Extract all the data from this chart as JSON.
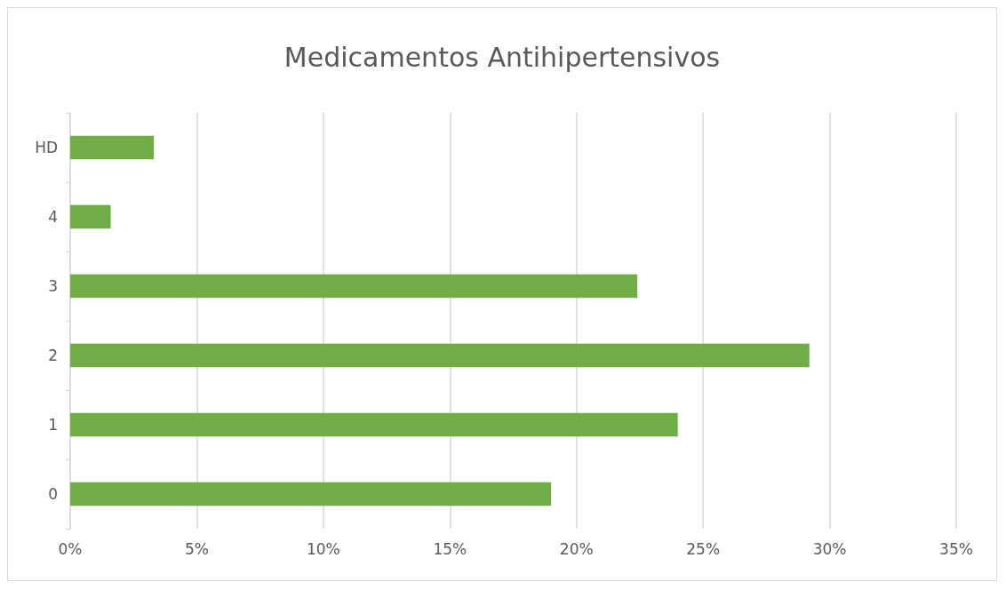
{
  "chart_data": {
    "type": "bar",
    "title": "Medicamentos Antihipertensivos",
    "orientation": "horizontal",
    "categories": [
      "HD",
      "4",
      "3",
      "2",
      "1",
      "0"
    ],
    "values": [
      3.3,
      1.6,
      22.4,
      29.2,
      24.0,
      19.0
    ],
    "color": "#70ad47",
    "xlim": [
      0,
      35
    ],
    "xticks": [
      {
        "value": 0,
        "label": "0%"
      },
      {
        "value": 5,
        "label": "5%"
      },
      {
        "value": 10,
        "label": "10%"
      },
      {
        "value": 15,
        "label": "15%"
      },
      {
        "value": 20,
        "label": "20%"
      },
      {
        "value": 25,
        "label": "25%"
      },
      {
        "value": 30,
        "label": "30%"
      },
      {
        "value": 35,
        "label": "35%"
      }
    ],
    "grid": "x"
  }
}
